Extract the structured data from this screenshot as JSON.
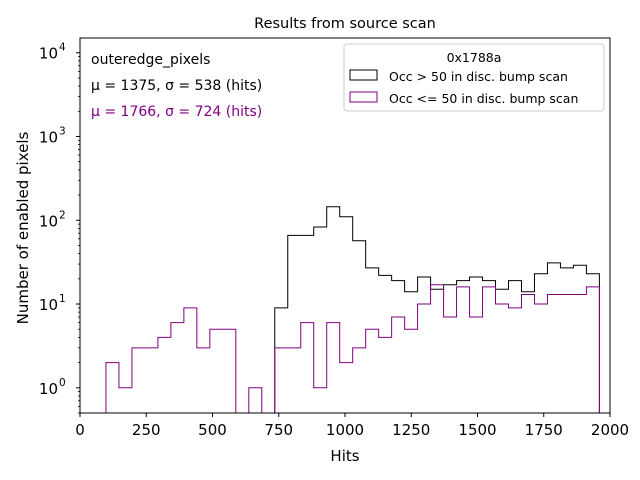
{
  "chart_data": {
    "type": "histogram",
    "title": "Results from source scan",
    "xlabel": "Hits",
    "ylabel": "Number of enabled pixels",
    "xlim": [
      0,
      2000
    ],
    "ylim": [
      0.5,
      15000
    ],
    "yscale": "log",
    "x_ticks": [
      0,
      250,
      500,
      750,
      1000,
      1250,
      1500,
      1750,
      2000
    ],
    "x_tick_labels": [
      "0",
      "250",
      "500",
      "750",
      "1000",
      "1250",
      "1500",
      "1750",
      "2000"
    ],
    "y_ticks": [
      1,
      10,
      100,
      1000,
      10000
    ],
    "y_tick_labels": [
      "10",
      "10",
      "10",
      "10",
      "10"
    ],
    "y_tick_exponents": [
      "0",
      "1",
      "2",
      "3",
      "4"
    ],
    "bin_edges": [
      0,
      49,
      98,
      147,
      196,
      245,
      294,
      343,
      392,
      441,
      490,
      539,
      588,
      637,
      686,
      735,
      784,
      833,
      882,
      931,
      980,
      1029,
      1078,
      1127,
      1176,
      1225,
      1274,
      1323,
      1372,
      1421,
      1470,
      1519,
      1568,
      1617,
      1666,
      1715,
      1764,
      1813,
      1862,
      1911,
      1960
    ],
    "series": [
      {
        "name": "Occ > 50 in disc. bump scan",
        "color": "#000000",
        "counts": [
          0,
          0,
          0,
          0,
          0,
          0,
          0,
          0,
          0,
          0,
          0,
          0,
          0,
          0,
          0,
          9,
          66,
          66,
          83,
          145,
          110,
          57,
          27,
          22,
          19,
          14,
          21,
          15,
          17,
          19,
          21,
          19,
          15,
          19,
          14,
          23,
          31,
          27,
          29,
          23
        ]
      },
      {
        "name": "Occ <= 50 in disc. bump scan",
        "color": "#800080",
        "counts": [
          0,
          0,
          2,
          1,
          3,
          3,
          4,
          6,
          9,
          3,
          5,
          5,
          0,
          1,
          0,
          3,
          3,
          6,
          1,
          6,
          2,
          3,
          5,
          4,
          7,
          5,
          10,
          17,
          7,
          16,
          7,
          16,
          10,
          9,
          13,
          10,
          13,
          13,
          13,
          16
        ]
      }
    ],
    "legend": {
      "title": "0x1788a",
      "position": "top-right"
    },
    "annotations": [
      {
        "id": "region",
        "text": "outeredge_pixels",
        "color": "#000000"
      },
      {
        "id": "stats-above",
        "text": "μ = 1375, σ = 538 (hits)",
        "color": "#000000"
      },
      {
        "id": "stats-below",
        "text": "μ = 1766, σ = 724 (hits)",
        "color": "#800080"
      }
    ],
    "grid": false
  }
}
